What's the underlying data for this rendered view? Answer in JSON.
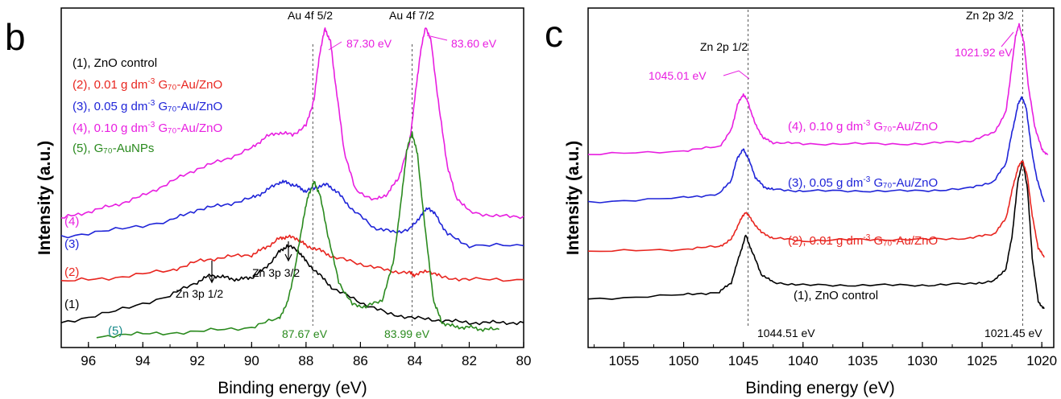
{
  "panels": [
    {
      "id": "b",
      "letter": "b",
      "xlabel": "Binding energy (eV)",
      "ylabel": "Intensity (a.u.)",
      "xlim": [
        97,
        80
      ],
      "xticks": [
        96,
        94,
        92,
        90,
        88,
        86,
        84,
        82,
        80
      ],
      "legend": [
        {
          "text": "(1), ZnO control",
          "color": "#000000"
        },
        {
          "text": "(2), 0.01 g dm",
          "sup": "-3",
          "tail": " G₇₀-Au/ZnO",
          "color": "#e8251f"
        },
        {
          "text": "(3), 0.05 g dm",
          "sup": "-3",
          "tail": " G₇₀-Au/ZnO",
          "color": "#1f24d8"
        },
        {
          "text": "(4), 0.10 g dm",
          "sup": "-3",
          "tail": " G₇₀-Au/ZnO",
          "color": "#e81ee0"
        },
        {
          "text": "(5), G₇₀-AuNPs",
          "color": "#1a8a8a",
          "tail_color": "#2a8a1e",
          "split": "(5), "
        }
      ],
      "curve_labels": [
        {
          "text": "(4)",
          "color": "#e81ee0"
        },
        {
          "text": "(3)",
          "color": "#1f24d8"
        },
        {
          "text": "(2)",
          "color": "#e8251f"
        },
        {
          "text": "(1)",
          "color": "#000000"
        },
        {
          "text": "(5)",
          "color": "#1a8a8a"
        }
      ],
      "annotations": {
        "au52": "Au 4f 5/2",
        "au72": "Au 4f 7/2",
        "pk1": "87.30 eV",
        "pk2": "83.60 eV",
        "zn12": "Zn 3p 1/2",
        "zn32": "Zn 3p 3/2",
        "g1": "87.67 eV",
        "g2": "83.99 eV"
      },
      "ref_lines": [
        87.75,
        84.1
      ]
    },
    {
      "id": "c",
      "letter": "c",
      "xlabel": "Binding energy (eV)",
      "ylabel": "Intensity (a.u.)",
      "xlim": [
        1058,
        1019
      ],
      "xticks": [
        1055,
        1050,
        1045,
        1040,
        1035,
        1030,
        1025,
        1020
      ],
      "series_labels": [
        {
          "text": "(4), 0.10 g dm",
          "sup": "-3",
          "tail": " G₇₀-Au/ZnO",
          "color": "#e81ee0"
        },
        {
          "text": "(3), 0.05 g dm",
          "sup": "-3",
          "tail": " G₇₀-Au/ZnO",
          "color": "#1f24d8"
        },
        {
          "text": "(2), 0.01 g dm",
          "sup": "-3",
          "tail": " G₇₀-Au/ZnO",
          "color": "#e8251f"
        },
        {
          "text": "(1), ZnO control",
          "color": "#000000"
        }
      ],
      "annotations": {
        "zn12": "Zn 2p 1/2",
        "zn32": "Zn 2p 3/2",
        "pk1": "1045.01 eV",
        "pk2": "1021.92 eV",
        "b1": "1044.51 eV",
        "b2": "1021.45 eV"
      },
      "ref_lines": [
        1044.6,
        1021.6
      ]
    }
  ],
  "chart_data": [
    {
      "type": "line",
      "xlabel": "Binding energy (eV)",
      "ylabel": "Intensity (a.u.)",
      "xlim": [
        97,
        80
      ],
      "grid": false,
      "series": [
        {
          "name": "(1), ZnO control",
          "color": "#000000",
          "x": [
            97,
            95,
            93,
            92,
            91.5,
            91,
            90.5,
            90,
            89.5,
            89,
            88.7,
            88.3,
            88,
            87.5,
            87,
            86,
            85,
            84,
            83,
            82,
            81,
            80
          ],
          "y": [
            0.06,
            0.11,
            0.18,
            0.24,
            0.27,
            0.26,
            0.25,
            0.26,
            0.3,
            0.37,
            0.4,
            0.38,
            0.33,
            0.27,
            0.21,
            0.15,
            0.1,
            0.08,
            0.07,
            0.06,
            0.06,
            0.06
          ]
        },
        {
          "name": "(2), 0.01 g dm-3 G70-Au/ZnO",
          "color": "#e8251f",
          "x": [
            97,
            95,
            93,
            92,
            91,
            90,
            89.5,
            89,
            88.7,
            88.3,
            88,
            87.5,
            87,
            86,
            85,
            84.2,
            84,
            83.5,
            83,
            82,
            80
          ],
          "y": [
            0.24,
            0.26,
            0.29,
            0.33,
            0.35,
            0.36,
            0.39,
            0.43,
            0.44,
            0.43,
            0.4,
            0.38,
            0.35,
            0.32,
            0.29,
            0.28,
            0.27,
            0.29,
            0.26,
            0.25,
            0.25
          ]
        },
        {
          "name": "(3), 0.05 g dm-3 G70-Au/ZnO",
          "color": "#1f24d8",
          "x": [
            97,
            95,
            93,
            92,
            91,
            90,
            89.5,
            89,
            88.7,
            88.3,
            88,
            87.6,
            87.2,
            86.8,
            86.3,
            85.5,
            84.8,
            84.2,
            83.8,
            83.5,
            83.2,
            82.8,
            82,
            80
          ],
          "y": [
            0.44,
            0.47,
            0.51,
            0.56,
            0.58,
            0.61,
            0.64,
            0.68,
            0.68,
            0.66,
            0.64,
            0.66,
            0.67,
            0.63,
            0.56,
            0.48,
            0.46,
            0.47,
            0.53,
            0.57,
            0.53,
            0.45,
            0.4,
            0.4
          ]
        },
        {
          "name": "(4), 0.10 g dm-3 G70-Au/ZnO",
          "color": "#e81ee0",
          "x": [
            97,
            96,
            95,
            94,
            93,
            92,
            91,
            90,
            89.5,
            89,
            88.5,
            88,
            87.7,
            87.5,
            87.3,
            87.1,
            86.9,
            86.6,
            86.2,
            85.5,
            85,
            84.6,
            84.2,
            84,
            83.8,
            83.6,
            83.4,
            83.1,
            82.8,
            82.5,
            82,
            81,
            80
          ],
          "y": [
            0.52,
            0.55,
            0.58,
            0.62,
            0.68,
            0.74,
            0.78,
            0.83,
            0.88,
            0.9,
            0.89,
            0.93,
            1.05,
            1.25,
            1.36,
            1.3,
            1.1,
            0.82,
            0.65,
            0.6,
            0.63,
            0.7,
            0.85,
            1.05,
            1.25,
            1.37,
            1.3,
            1.0,
            0.75,
            0.62,
            0.55,
            0.53,
            0.53
          ]
        },
        {
          "name": "(5), G70-AuNPs",
          "color": "#2a8a1e",
          "x": [
            95.7,
            94,
            92,
            90,
            89,
            88.7,
            88.4,
            88.1,
            87.9,
            87.7,
            87.5,
            87.2,
            86.8,
            86.3,
            85.8,
            85.2,
            84.8,
            84.5,
            84.3,
            84.1,
            83.9,
            83.6,
            83.3,
            83,
            82.5,
            82,
            81.5,
            80.9
          ],
          "y": [
            0.0,
            0.01,
            0.02,
            0.04,
            0.08,
            0.14,
            0.3,
            0.52,
            0.63,
            0.68,
            0.63,
            0.45,
            0.24,
            0.14,
            0.13,
            0.16,
            0.32,
            0.6,
            0.82,
            0.9,
            0.8,
            0.45,
            0.15,
            0.06,
            0.04,
            0.04,
            0.03,
            0.03
          ]
        }
      ]
    },
    {
      "type": "line",
      "xlabel": "Binding energy (eV)",
      "ylabel": "Intensity (a.u.)",
      "xlim": [
        1058,
        1019
      ],
      "grid": false,
      "series": [
        {
          "name": "(1), ZnO control",
          "color": "#000000",
          "x": [
            1058,
            1050,
            1047,
            1046,
            1045.3,
            1044.8,
            1044.3,
            1043.5,
            1042.5,
            1040,
            1035,
            1030,
            1026,
            1024,
            1023,
            1022.5,
            1022,
            1021.6,
            1021.2,
            1020.8,
            1020.3,
            1019.8
          ],
          "y": [
            0.1,
            0.13,
            0.15,
            0.22,
            0.42,
            0.56,
            0.45,
            0.28,
            0.22,
            0.2,
            0.2,
            0.2,
            0.21,
            0.23,
            0.32,
            0.55,
            0.95,
            1.1,
            0.9,
            0.4,
            0.08,
            0.03
          ]
        },
        {
          "name": "(2), 0.01 g dm-3 G70-Au/ZnO",
          "color": "#e8251f",
          "x": [
            1058,
            1050,
            1047,
            1046,
            1045.3,
            1044.8,
            1044.3,
            1043.5,
            1042.5,
            1040,
            1035,
            1030,
            1026,
            1024,
            1023,
            1022.5,
            1022,
            1021.6,
            1021.2,
            1020.8,
            1020.3,
            1019.8
          ],
          "y": [
            0.44,
            0.46,
            0.48,
            0.53,
            0.66,
            0.73,
            0.67,
            0.58,
            0.54,
            0.52,
            0.53,
            0.53,
            0.54,
            0.57,
            0.68,
            0.88,
            1.05,
            1.1,
            0.98,
            0.7,
            0.47,
            0.4
          ]
        },
        {
          "name": "(3), 0.05 g dm-3 G70-Au/ZnO",
          "color": "#1f24d8",
          "x": [
            1058,
            1050,
            1047,
            1046,
            1045.5,
            1045,
            1044.6,
            1044,
            1043.3,
            1042.5,
            1040,
            1035,
            1030,
            1026,
            1024,
            1023,
            1022.5,
            1022,
            1021.7,
            1021.3,
            1020.9,
            1020.4,
            1019.8
          ],
          "y": [
            0.8,
            0.83,
            0.86,
            0.96,
            1.12,
            1.18,
            1.12,
            0.98,
            0.91,
            0.89,
            0.88,
            0.88,
            0.88,
            0.9,
            0.95,
            1.08,
            1.3,
            1.5,
            1.56,
            1.48,
            1.2,
            0.96,
            0.8
          ]
        },
        {
          "name": "(4), 0.10 g dm-3 G70-Au/ZnO",
          "color": "#e81ee0",
          "x": [
            1058,
            1050,
            1047,
            1046,
            1045.5,
            1045,
            1044.6,
            1044,
            1043.3,
            1042.5,
            1040,
            1035,
            1030,
            1026,
            1024,
            1023,
            1022.6,
            1022.2,
            1021.9,
            1021.5,
            1021.1,
            1020.6,
            1020,
            1019.5
          ],
          "y": [
            1.14,
            1.17,
            1.2,
            1.32,
            1.5,
            1.58,
            1.52,
            1.36,
            1.26,
            1.23,
            1.22,
            1.22,
            1.22,
            1.24,
            1.3,
            1.45,
            1.72,
            2.0,
            2.08,
            1.95,
            1.62,
            1.35,
            1.18,
            1.14
          ]
        }
      ]
    }
  ]
}
